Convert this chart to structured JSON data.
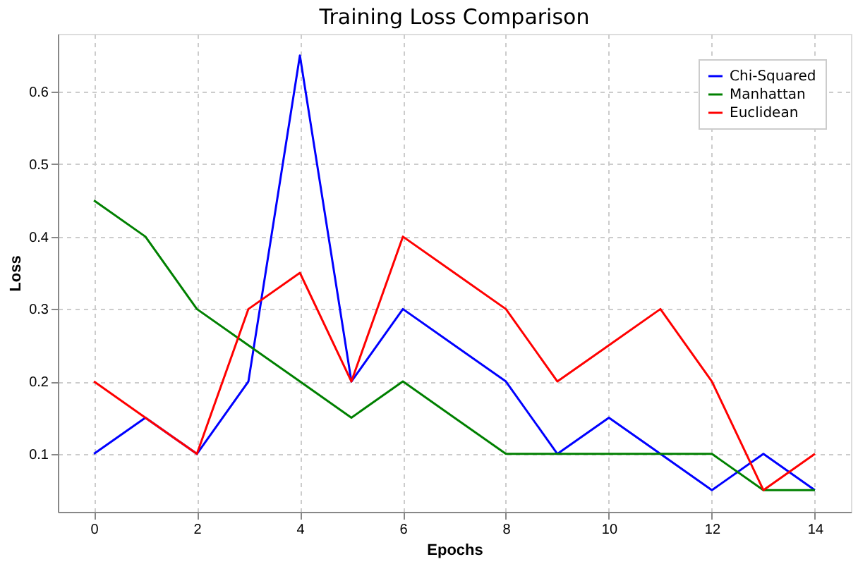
{
  "chart_data": {
    "type": "line",
    "title": "Training Loss Comparison",
    "xlabel": "Epochs",
    "ylabel": "Loss",
    "x": [
      0,
      1,
      2,
      3,
      4,
      5,
      6,
      7,
      8,
      9,
      10,
      11,
      12,
      13,
      14
    ],
    "series": [
      {
        "name": "Chi-Squared",
        "color": "#0000ff",
        "values": [
          0.1,
          0.15,
          0.1,
          0.2,
          0.65,
          0.2,
          0.3,
          0.25,
          0.2,
          0.1,
          0.15,
          0.1,
          0.05,
          0.1,
          0.05
        ]
      },
      {
        "name": "Manhattan",
        "color": "#008000",
        "values": [
          0.45,
          0.4,
          0.3,
          0.25,
          0.2,
          0.15,
          0.2,
          0.15,
          0.1,
          0.1,
          0.1,
          0.1,
          0.1,
          0.05,
          0.05
        ]
      },
      {
        "name": "Euclidean",
        "color": "#ff0000",
        "values": [
          0.2,
          0.15,
          0.1,
          0.3,
          0.35,
          0.2,
          0.4,
          0.35,
          0.3,
          0.2,
          0.25,
          0.3,
          0.2,
          0.05,
          0.1
        ]
      }
    ],
    "xlim": [
      -0.7,
      14.7
    ],
    "xticks": [
      0,
      2,
      4,
      6,
      8,
      10,
      12,
      14
    ],
    "ylim": [
      0.02,
      0.68
    ],
    "yticks": [
      0.1,
      0.2,
      0.3,
      0.4,
      0.5,
      0.6
    ],
    "grid": true,
    "legend": "top right",
    "line_style": "solid",
    "marker": "none"
  }
}
